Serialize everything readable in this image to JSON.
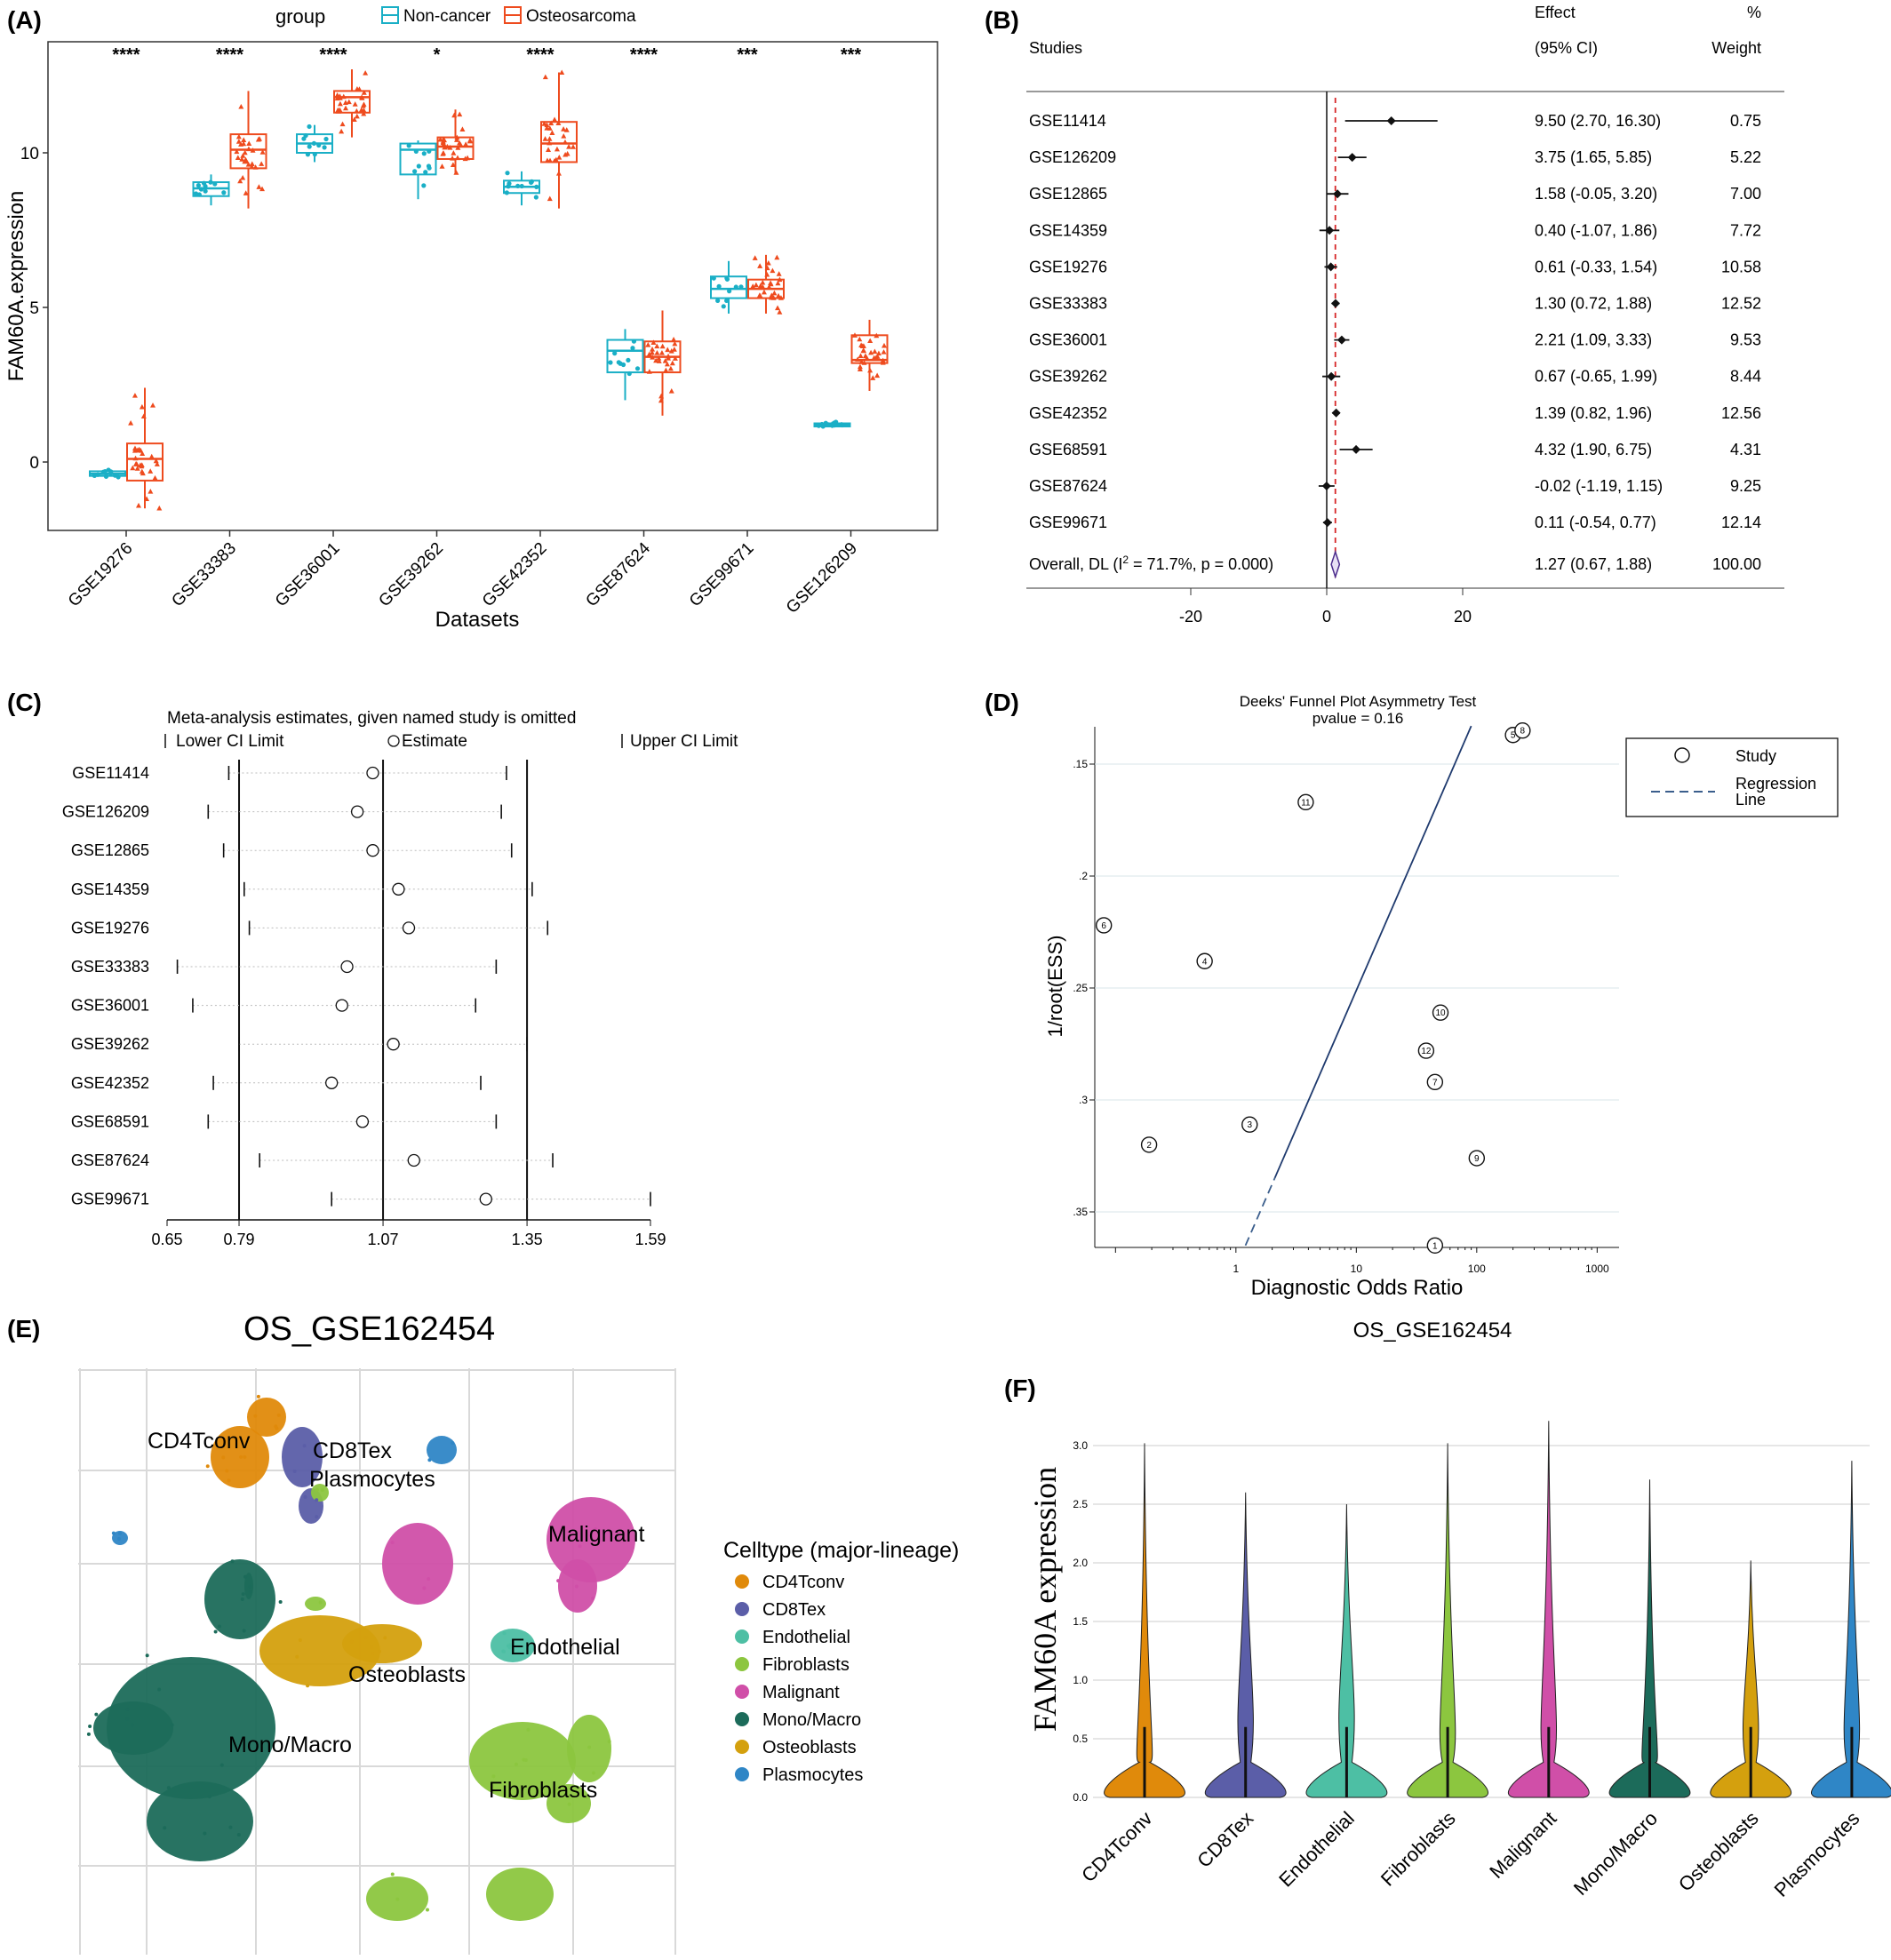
{
  "panel_labels": {
    "a": "(A)",
    "b": "(B)",
    "c": "(C)",
    "d": "(D)",
    "e": "(E)",
    "f": "(F)"
  },
  "colors": {
    "noncancer": "#1AAFC6",
    "osteosarcoma": "#EE4B1E",
    "forest_ref": "#D62728",
    "regression": "#1F3A6E"
  },
  "chart_data": [
    {
      "panel": "A",
      "type": "box",
      "legend_title": "group",
      "xlabel": "Datasets",
      "ylabel": "FAM60A.expression",
      "ylim": [
        -2.2,
        14
      ],
      "yticks": [
        0,
        5,
        10
      ],
      "categories": [
        "GSE19276",
        "GSE33383",
        "GSE36001",
        "GSE39262",
        "GSE42352",
        "GSE87624",
        "GSE99671",
        "GSE126209"
      ],
      "significance": [
        "****",
        "****",
        "****",
        "*",
        "****",
        "****",
        "***",
        "***"
      ],
      "series": [
        {
          "name": "Non-cancer",
          "boxes": [
            {
              "min": -0.5,
              "q1": -0.45,
              "median": -0.38,
              "q3": -0.3,
              "max": -0.25
            },
            {
              "min": 8.3,
              "q1": 8.6,
              "median": 8.85,
              "q3": 9.05,
              "max": 9.3
            },
            {
              "min": 9.7,
              "q1": 10.0,
              "median": 10.3,
              "q3": 10.6,
              "max": 10.9
            },
            {
              "min": 8.5,
              "q1": 9.3,
              "median": 10.1,
              "q3": 10.3,
              "max": 10.4
            },
            {
              "min": 8.3,
              "q1": 8.7,
              "median": 8.9,
              "q3": 9.1,
              "max": 9.4
            },
            {
              "min": 2.0,
              "q1": 2.9,
              "median": 3.6,
              "q3": 3.95,
              "max": 4.3
            },
            {
              "min": 4.8,
              "q1": 5.3,
              "median": 5.6,
              "q3": 6.0,
              "max": 6.5
            },
            {
              "min": 1.1,
              "q1": 1.15,
              "median": 1.2,
              "q3": 1.25,
              "max": 1.3
            }
          ]
        },
        {
          "name": "Osteosarcoma",
          "boxes": [
            {
              "min": -1.5,
              "q1": -0.6,
              "median": 0.1,
              "q3": 0.6,
              "max": 2.4
            },
            {
              "min": 8.2,
              "q1": 9.5,
              "median": 10.1,
              "q3": 10.6,
              "max": 12.0
            },
            {
              "min": 10.5,
              "q1": 11.3,
              "median": 11.8,
              "q3": 12.0,
              "max": 12.7
            },
            {
              "min": 9.3,
              "q1": 9.8,
              "median": 10.2,
              "q3": 10.5,
              "max": 11.4
            },
            {
              "min": 8.2,
              "q1": 9.7,
              "median": 10.3,
              "q3": 11.0,
              "max": 12.6
            },
            {
              "min": 1.5,
              "q1": 2.9,
              "median": 3.4,
              "q3": 3.9,
              "max": 4.9
            },
            {
              "min": 4.8,
              "q1": 5.3,
              "median": 5.6,
              "q3": 5.9,
              "max": 6.7
            },
            {
              "min": 2.3,
              "q1": 3.2,
              "median": 3.3,
              "q3": 4.1,
              "max": 4.6
            }
          ]
        }
      ]
    },
    {
      "panel": "B",
      "type": "forest",
      "headers": {
        "studies": "Studies",
        "effect1": "Effect",
        "effect2": "(95% CI)",
        "weight1": "%",
        "weight2": "Weight"
      },
      "xlim": [
        -30,
        24
      ],
      "xticks": [
        -20,
        0,
        20
      ],
      "reference_line": 1.27,
      "studies": [
        {
          "name": "GSE11414",
          "est": 9.5,
          "lo": 2.7,
          "hi": 16.3,
          "ci": "9.50 (2.70, 16.30)",
          "weight": "0.75"
        },
        {
          "name": "GSE126209",
          "est": 3.75,
          "lo": 1.65,
          "hi": 5.85,
          "ci": "3.75 (1.65, 5.85)",
          "weight": "5.22"
        },
        {
          "name": "GSE12865",
          "est": 1.58,
          "lo": -0.05,
          "hi": 3.2,
          "ci": "1.58 (-0.05, 3.20)",
          "weight": "7.00"
        },
        {
          "name": "GSE14359",
          "est": 0.4,
          "lo": -1.07,
          "hi": 1.86,
          "ci": "0.40 (-1.07, 1.86)",
          "weight": "7.72"
        },
        {
          "name": "GSE19276",
          "est": 0.61,
          "lo": -0.33,
          "hi": 1.54,
          "ci": "0.61 (-0.33, 1.54)",
          "weight": "10.58"
        },
        {
          "name": "GSE33383",
          "est": 1.3,
          "lo": 0.72,
          "hi": 1.88,
          "ci": "1.30 (0.72, 1.88)",
          "weight": "12.52"
        },
        {
          "name": "GSE36001",
          "est": 2.21,
          "lo": 1.09,
          "hi": 3.33,
          "ci": "2.21 (1.09, 3.33)",
          "weight": "9.53"
        },
        {
          "name": "GSE39262",
          "est": 0.67,
          "lo": -0.65,
          "hi": 1.99,
          "ci": "0.67 (-0.65, 1.99)",
          "weight": "8.44"
        },
        {
          "name": "GSE42352",
          "est": 1.39,
          "lo": 0.82,
          "hi": 1.96,
          "ci": "1.39 (0.82, 1.96)",
          "weight": "12.56"
        },
        {
          "name": "GSE68591",
          "est": 4.32,
          "lo": 1.9,
          "hi": 6.75,
          "ci": "4.32 (1.90, 6.75)",
          "weight": "4.31"
        },
        {
          "name": "GSE87624",
          "est": -0.02,
          "lo": -1.19,
          "hi": 1.15,
          "ci": "-0.02 (-1.19, 1.15)",
          "weight": "9.25"
        },
        {
          "name": "GSE99671",
          "est": 0.11,
          "lo": -0.54,
          "hi": 0.77,
          "ci": "0.11 (-0.54, 0.77)",
          "weight": "12.14"
        }
      ],
      "overall": {
        "label_pre": "Overall, DL (I",
        "label_sup": "2",
        "label_post": " = 71.7%, p = 0.000)",
        "est": 1.27,
        "lo": 0.67,
        "hi": 1.88,
        "ci": "1.27 (0.67, 1.88)",
        "weight": "100.00"
      }
    },
    {
      "panel": "C",
      "type": "influence",
      "title": "Meta-analysis estimates, given named study is omitted",
      "legend": {
        "lower": "Lower CI Limit",
        "estimate": "Estimate",
        "upper": "Upper CI Limit"
      },
      "xlim": [
        0.65,
        1.59
      ],
      "xticks": [
        "0.65",
        "0.79",
        "1.07",
        "1.35",
        "1.59"
      ],
      "reference_lines": [
        0.79,
        1.07,
        1.35
      ],
      "studies": [
        {
          "name": "GSE11414",
          "lo": 0.77,
          "est": 1.05,
          "hi": 1.31
        },
        {
          "name": "GSE126209",
          "lo": 0.73,
          "est": 1.02,
          "hi": 1.3
        },
        {
          "name": "GSE12865",
          "lo": 0.76,
          "est": 1.05,
          "hi": 1.32
        },
        {
          "name": "GSE14359",
          "lo": 0.8,
          "est": 1.1,
          "hi": 1.36
        },
        {
          "name": "GSE19276",
          "lo": 0.81,
          "est": 1.12,
          "hi": 1.39
        },
        {
          "name": "GSE33383",
          "lo": 0.67,
          "est": 1.0,
          "hi": 1.29
        },
        {
          "name": "GSE36001",
          "lo": 0.7,
          "est": 0.99,
          "hi": 1.25
        },
        {
          "name": "GSE39262",
          "lo": 0.79,
          "est": 1.09,
          "hi": 1.35
        },
        {
          "name": "GSE42352",
          "lo": 0.74,
          "est": 0.97,
          "hi": 1.26
        },
        {
          "name": "GSE68591",
          "lo": 0.73,
          "est": 1.03,
          "hi": 1.29
        },
        {
          "name": "GSE87624",
          "lo": 0.83,
          "est": 1.13,
          "hi": 1.4
        },
        {
          "name": "GSE99671",
          "lo": 0.97,
          "est": 1.27,
          "hi": 1.59
        }
      ]
    },
    {
      "panel": "D",
      "type": "scatter",
      "title": "Deeks' Funnel Plot Asymmetry Test",
      "subtitle": "pvalue  =   0.16",
      "xlabel": "Diagnostic Odds Ratio",
      "ylabel": "1/root(ESS)",
      "xscale": "log",
      "xlim": [
        0.07,
        1000
      ],
      "ylim": [
        0.365,
        0.13
      ],
      "xticks": [
        "1",
        "10",
        "100",
        "1000"
      ],
      "yticks": [
        ".15",
        ".2",
        ".25",
        ".3",
        ".35"
      ],
      "legend": {
        "study": "Study",
        "regression1": "Regression",
        "regression2": "Line"
      },
      "points": [
        {
          "label": "1",
          "x": 45,
          "y": 0.365
        },
        {
          "label": "2",
          "x": 0.19,
          "y": 0.32
        },
        {
          "label": "3",
          "x": 1.3,
          "y": 0.311
        },
        {
          "label": "4",
          "x": 0.55,
          "y": 0.238
        },
        {
          "label": "5",
          "x": 200,
          "y": 0.137
        },
        {
          "label": "6",
          "x": 0.08,
          "y": 0.222
        },
        {
          "label": "7",
          "x": 45,
          "y": 0.292
        },
        {
          "label": "8",
          "x": 240,
          "y": 0.135
        },
        {
          "label": "9",
          "x": 100,
          "y": 0.326
        },
        {
          "label": "10",
          "x": 50,
          "y": 0.261
        },
        {
          "label": "11",
          "x": 3.8,
          "y": 0.167
        },
        {
          "label": "12",
          "x": 38,
          "y": 0.278
        }
      ],
      "regression": [
        {
          "x": 1.2,
          "y": 0.365
        },
        {
          "x": 90,
          "y": 0.133
        }
      ]
    },
    {
      "panel": "E",
      "type": "scatter",
      "title": "OS_GSE162454",
      "legend_title": "Celltype (major-lineage)",
      "celltypes": [
        {
          "name": "CD4Tconv",
          "color": "#E08A0B"
        },
        {
          "name": "CD8Tex",
          "color": "#5B5EA8"
        },
        {
          "name": "Endothelial",
          "color": "#4DBFA4"
        },
        {
          "name": "Fibroblasts",
          "color": "#8CC63F"
        },
        {
          "name": "Malignant",
          "color": "#D04FA8"
        },
        {
          "name": "Mono/Macro",
          "color": "#1C6B5A"
        },
        {
          "name": "Osteoblasts",
          "color": "#D4A00E"
        },
        {
          "name": "Plasmocytes",
          "color": "#2F86C6"
        }
      ],
      "cluster_labels": [
        "CD4Tconv",
        "CD8Tex",
        "Plasmocytes",
        "Malignant",
        "Endothelial",
        "Osteoblasts",
        "Mono/Macro",
        "Fibroblasts"
      ]
    },
    {
      "panel": "F",
      "type": "violin",
      "title": "OS_GSE162454",
      "ylabel": "FAM60A expression",
      "ylim": [
        0,
        3.25
      ],
      "yticks": [
        "0.0",
        "0.5",
        "1.0",
        "1.5",
        "2.0",
        "2.5",
        "3.0"
      ],
      "categories": [
        "CD4Tconv",
        "CD8Tex",
        "Endothelial",
        "Fibroblasts",
        "Malignant",
        "Mono/Macro",
        "Osteoblasts",
        "Plasmocytes"
      ],
      "max_values": [
        3.02,
        2.6,
        2.5,
        3.02,
        3.21,
        2.71,
        2.02,
        2.87
      ]
    }
  ]
}
